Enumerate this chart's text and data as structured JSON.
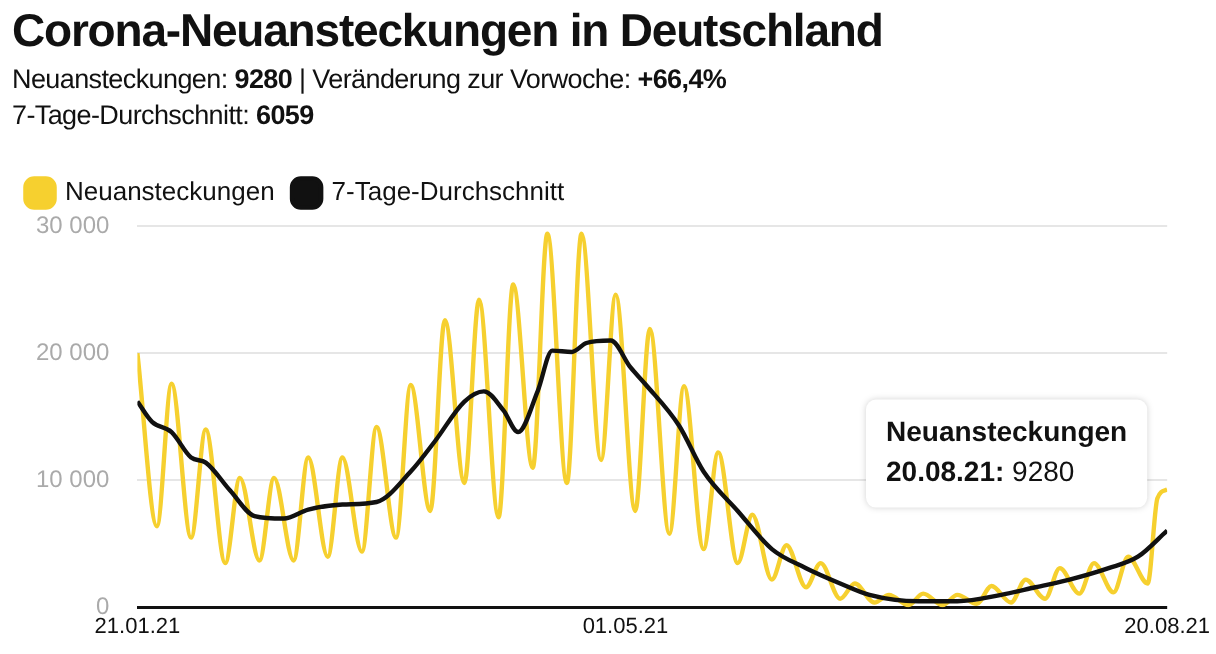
{
  "chart_data": {
    "type": "line",
    "title": "Corona-Neuansteckungen in Deutschland",
    "subtitle": "Neuansteckungen: 9280 | Veränderung zur Vorwoche: +66,4%\n7-Tage-Durchschnitt: 6059",
    "xlim": [
      "2021-01-21",
      "2021-08-20"
    ],
    "xticks": [
      {
        "value": "2021-01-21",
        "label": "21.01.21"
      },
      {
        "value": "2021-05-01",
        "label": "01.05.21"
      },
      {
        "value": "2021-08-20",
        "label": "20.08.21"
      }
    ],
    "ylim": [
      0,
      30000
    ],
    "yticks": [
      0,
      {
        "value": 10000,
        "label": "10 000"
      },
      {
        "value": 20000,
        "label": "20 000"
      },
      {
        "value": 30000,
        "label": "30 000"
      }
    ],
    "grid": "y",
    "legend": "top left",
    "marker": "none",
    "line_style": "solid",
    "series": [
      {
        "name": "Neuansteckungen",
        "color": "#f6d02f",
        "x": [
          "2021-01-21",
          "2021-01-25",
          "2021-01-28",
          "2021-02-01",
          "2021-02-04",
          "2021-02-08",
          "2021-02-11",
          "2021-02-15",
          "2021-02-18",
          "2021-02-22",
          "2021-02-25",
          "2021-03-01",
          "2021-03-04",
          "2021-03-08",
          "2021-03-11",
          "2021-03-15",
          "2021-03-18",
          "2021-03-22",
          "2021-03-25",
          "2021-03-29",
          "2021-04-01",
          "2021-04-05",
          "2021-04-08",
          "2021-04-12",
          "2021-04-15",
          "2021-04-19",
          "2021-04-22",
          "2021-04-26",
          "2021-04-29",
          "2021-05-03",
          "2021-05-06",
          "2021-05-10",
          "2021-05-13",
          "2021-05-17",
          "2021-05-20",
          "2021-05-24",
          "2021-05-27",
          "2021-05-31",
          "2021-06-03",
          "2021-06-07",
          "2021-06-10",
          "2021-06-14",
          "2021-06-17",
          "2021-06-21",
          "2021-06-24",
          "2021-06-28",
          "2021-07-01",
          "2021-07-05",
          "2021-07-08",
          "2021-07-12",
          "2021-07-15",
          "2021-07-19",
          "2021-07-22",
          "2021-07-26",
          "2021-07-29",
          "2021-08-02",
          "2021-08-05",
          "2021-08-09",
          "2021-08-12",
          "2021-08-16",
          "2021-08-18",
          "2021-08-20"
        ],
        "values": [
          20000,
          6400,
          17600,
          5500,
          14000,
          3500,
          10200,
          3700,
          10200,
          3700,
          11800,
          4000,
          11800,
          4400,
          14200,
          5500,
          17500,
          7600,
          22600,
          9800,
          24200,
          7100,
          25400,
          11000,
          29400,
          9800,
          29400,
          11600,
          24600,
          7600,
          21900,
          5800,
          17400,
          4600,
          12200,
          3500,
          7300,
          2200,
          4900,
          1600,
          3500,
          700,
          1900,
          400,
          1000,
          200,
          1100,
          200,
          1000,
          300,
          1700,
          400,
          2200,
          700,
          3100,
          1100,
          3500,
          1200,
          4000,
          1900,
          8600,
          9280
        ]
      },
      {
        "name": "7-Tage-Durchschnitt",
        "color": "#111111",
        "x": [
          "2021-01-21",
          "2021-01-24",
          "2021-01-28",
          "2021-02-01",
          "2021-02-04",
          "2021-02-09",
          "2021-02-14",
          "2021-02-20",
          "2021-02-25",
          "2021-03-04",
          "2021-03-11",
          "2021-03-18",
          "2021-03-23",
          "2021-03-29",
          "2021-04-02",
          "2021-04-06",
          "2021-04-09",
          "2021-04-13",
          "2021-04-16",
          "2021-04-20",
          "2021-04-23",
          "2021-04-28",
          "2021-05-02",
          "2021-05-05",
          "2021-05-12",
          "2021-05-17",
          "2021-05-24",
          "2021-05-31",
          "2021-06-07",
          "2021-06-14",
          "2021-06-20",
          "2021-06-30",
          "2021-07-08",
          "2021-07-17",
          "2021-07-24",
          "2021-07-31",
          "2021-08-08",
          "2021-08-14",
          "2021-08-20"
        ],
        "values": [
          16200,
          14600,
          13800,
          11800,
          11400,
          9200,
          7200,
          7000,
          7700,
          8100,
          8300,
          10700,
          13100,
          16200,
          17000,
          15500,
          13800,
          17000,
          20200,
          20100,
          20800,
          21000,
          18900,
          17600,
          14300,
          10700,
          7600,
          4600,
          3100,
          1900,
          1000,
          500,
          500,
          1000,
          1600,
          2200,
          3100,
          4000,
          6059
        ]
      }
    ],
    "annotations": [
      {
        "text": "Neuansteckungen\n20.08.21: 9280",
        "x": "2021-08-20",
        "y": 9280
      }
    ]
  }
}
